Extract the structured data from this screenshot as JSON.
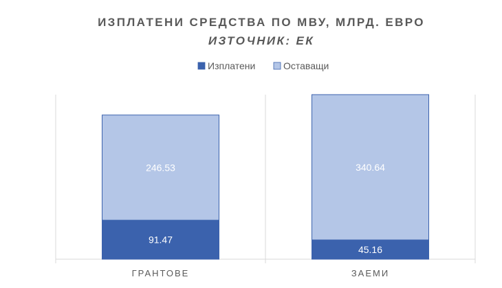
{
  "chart_data": {
    "type": "bar",
    "stacked": true,
    "title": "ИЗПЛАТЕНИ СРЕДСТВА ПО МВУ, МЛРД. ЕВРО",
    "subtitle": "ИЗТОЧНИК: ЕК",
    "categories": [
      "ГРАНТОВЕ",
      "ЗАЕМИ"
    ],
    "series": [
      {
        "name": "Изплатени",
        "values": [
          91.47,
          45.16
        ],
        "color": "#3b62ad",
        "label_color": "#ffffff"
      },
      {
        "name": "Оставащи",
        "values": [
          246.53,
          340.64
        ],
        "color": "#b4c6e7",
        "label_color": "#ffffff"
      }
    ],
    "ylim": [
      0,
      385.8
    ],
    "grid": false,
    "legend_position": "top",
    "colors": {
      "title": "#595959",
      "axis": "#d9d9d9",
      "tick": "#595959",
      "bar_border": "#3b62ad"
    }
  }
}
